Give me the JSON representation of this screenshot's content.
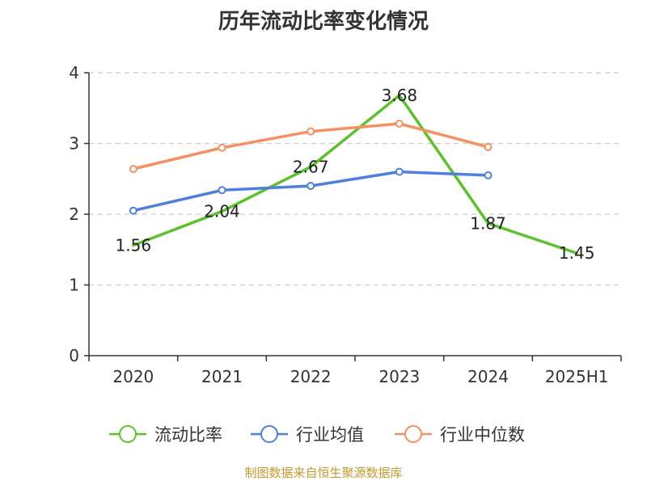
{
  "title": "历年流动比率变化情况",
  "footer": "制图数据来自恒生聚源数据库",
  "chart_data": {
    "type": "line",
    "title": "历年流动比率变化情况",
    "categories": [
      "2020",
      "2021",
      "2022",
      "2023",
      "2024",
      "2025H1"
    ],
    "ylim": [
      0,
      4
    ],
    "yticks": [
      0,
      1,
      2,
      3,
      4
    ],
    "grid": true,
    "legend_position": "bottom",
    "series": [
      {
        "name": "流动比率",
        "color": "#5cc22b",
        "marker": "none",
        "show_labels": true,
        "values": [
          1.56,
          2.04,
          2.67,
          3.68,
          1.87,
          1.45
        ],
        "labels": [
          "1.56",
          "2.04",
          "2.67",
          "3.68",
          "1.87",
          "1.45"
        ]
      },
      {
        "name": "行业均值",
        "color": "#4e7fdc",
        "marker": "circle",
        "show_labels": false,
        "values": [
          2.05,
          2.34,
          2.4,
          2.6,
          2.55,
          null
        ]
      },
      {
        "name": "行业中位数",
        "color": "#f49160",
        "marker": "circle",
        "show_labels": false,
        "values": [
          2.64,
          2.94,
          3.17,
          3.28,
          2.95,
          null
        ]
      }
    ]
  }
}
